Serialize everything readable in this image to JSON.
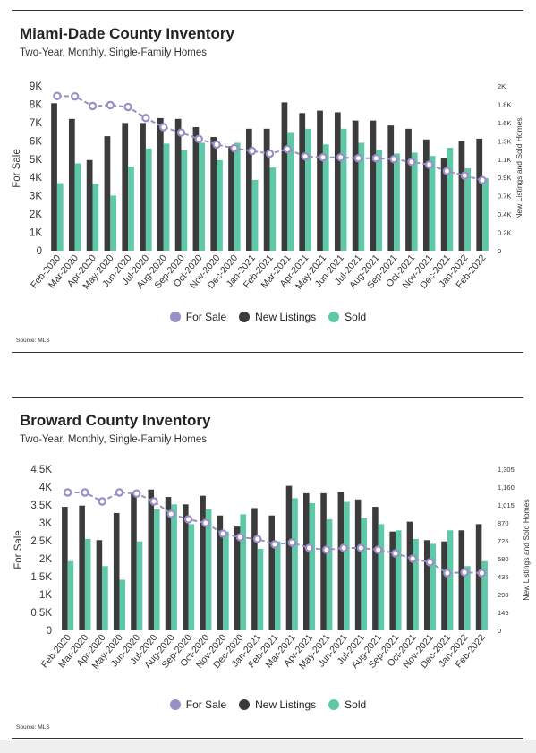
{
  "colors": {
    "for_sale": "#9b8ec4",
    "new_listings": "#3b3b3b",
    "sold": "#5ec8a8"
  },
  "legend": {
    "for_sale": "For Sale",
    "new_listings": "New Listings",
    "sold": "Sold"
  },
  "panels": [
    {
      "title": "Miami-Dade County Inventory",
      "subtitle": "Two-Year, Monthly, Single-Family Homes",
      "source": "Source: MLS"
    },
    {
      "title": "Broward County Inventory",
      "subtitle": "Two-Year, Monthly, Single-Family Homes",
      "source": "Source: MLS"
    }
  ],
  "chart_data": [
    {
      "type": "bar",
      "title": "Miami-Dade County Inventory",
      "subtitle": "Two-Year, Monthly, Single-Family Homes",
      "ylabel": "For Sale",
      "y2label": "New Listings and Sold Homes",
      "ylim": [
        0,
        9000
      ],
      "y2lim": [
        0,
        2000
      ],
      "yticks": [
        "0",
        "1K",
        "2K",
        "3K",
        "4K",
        "5K",
        "6K",
        "7K",
        "8K",
        "9K"
      ],
      "y2ticks": [
        "0",
        "0.2K",
        "0.4K",
        "0.7K",
        "0.9K",
        "1.1K",
        "1.3K",
        "1.6K",
        "1.8K",
        "2K"
      ],
      "legend_position": "bottom",
      "categories": [
        "Feb-2020",
        "Mar-2020",
        "Apr-2020",
        "May-2020",
        "Jun-2020",
        "Jul-2020",
        "Aug-2020",
        "Sep-2020",
        "Oct-2020",
        "Nov-2020",
        "Dec-2020",
        "Jan-2021",
        "Feb-2021",
        "Mar-2021",
        "Apr-2021",
        "May-2021",
        "Jun-2021",
        "Jul-2021",
        "Aug-2021",
        "Sep-2021",
        "Oct-2021",
        "Nov-2021",
        "Dec-2021",
        "Jan-2022",
        "Feb-2022"
      ],
      "series": [
        {
          "name": "For Sale",
          "type": "line",
          "axis": "left",
          "values": [
            8450,
            8430,
            7900,
            7950,
            7850,
            7250,
            6750,
            6450,
            6100,
            5800,
            5600,
            5450,
            5300,
            5550,
            5150,
            5100,
            5100,
            5050,
            5050,
            5000,
            4850,
            4700,
            4350,
            4100,
            3850
          ]
        },
        {
          "name": "New Listings",
          "type": "bar",
          "axis": "right",
          "values": [
            1790,
            1600,
            1100,
            1390,
            1550,
            1550,
            1610,
            1600,
            1500,
            1380,
            1270,
            1480,
            1480,
            1800,
            1670,
            1700,
            1680,
            1580,
            1580,
            1520,
            1480,
            1350,
            1130,
            1330,
            1360
          ]
        },
        {
          "name": "Sold",
          "type": "bar",
          "axis": "right",
          "values": [
            820,
            1060,
            810,
            670,
            1020,
            1240,
            1300,
            1220,
            1310,
            1100,
            1310,
            860,
            1010,
            1440,
            1480,
            1290,
            1480,
            1310,
            1220,
            1180,
            1190,
            1150,
            1250,
            1000,
            880
          ]
        }
      ]
    },
    {
      "type": "bar",
      "title": "Broward County Inventory",
      "subtitle": "Two-Year, Monthly, Single-Family Homes",
      "ylabel": "For Sale",
      "y2label": "New Listings and Sold Homes",
      "ylim": [
        0,
        4500
      ],
      "y2lim": [
        0,
        1305
      ],
      "yticks": [
        "0",
        "0.5K",
        "1K",
        "1.5K",
        "2K",
        "2.5K",
        "3K",
        "3.5K",
        "4K",
        "4.5K"
      ],
      "y2ticks": [
        "0",
        "145",
        "290",
        "435",
        "580",
        "725",
        "870",
        "1,015",
        "1,160",
        "1,305"
      ],
      "legend_position": "bottom",
      "categories": [
        "Feb-2020",
        "Mar-2020",
        "Apr-2020",
        "May-2020",
        "Jun-2020",
        "Jul-2020",
        "Aug-2020",
        "Sep-2020",
        "Oct-2020",
        "Nov-2020",
        "Dec-2020",
        "Jan-2021",
        "Feb-2021",
        "Mar-2021",
        "Apr-2021",
        "May-2021",
        "Jun-2021",
        "Jul-2021",
        "Aug-2021",
        "Sep-2021",
        "Oct-2021",
        "Nov-2021",
        "Dec-2021",
        "Jan-2022",
        "Feb-2022"
      ],
      "series": [
        {
          "name": "For Sale",
          "type": "line",
          "axis": "left",
          "values": [
            3850,
            3850,
            3600,
            3850,
            3820,
            3600,
            3250,
            3100,
            3000,
            2700,
            2600,
            2550,
            2400,
            2450,
            2300,
            2250,
            2300,
            2300,
            2250,
            2150,
            2000,
            1900,
            1600,
            1620,
            1600
          ]
        },
        {
          "name": "New Listings",
          "type": "bar",
          "axis": "right",
          "values": [
            1000,
            1010,
            730,
            950,
            1110,
            1140,
            1080,
            1020,
            1090,
            930,
            840,
            990,
            930,
            1170,
            1110,
            1110,
            1120,
            1060,
            1000,
            800,
            880,
            730,
            720,
            810,
            860
          ]
        },
        {
          "name": "Sold",
          "type": "bar",
          "axis": "right",
          "values": [
            560,
            740,
            520,
            410,
            720,
            980,
            1020,
            860,
            980,
            800,
            940,
            660,
            720,
            1070,
            1030,
            900,
            1040,
            910,
            860,
            810,
            740,
            700,
            810,
            520,
            560
          ]
        }
      ]
    }
  ]
}
